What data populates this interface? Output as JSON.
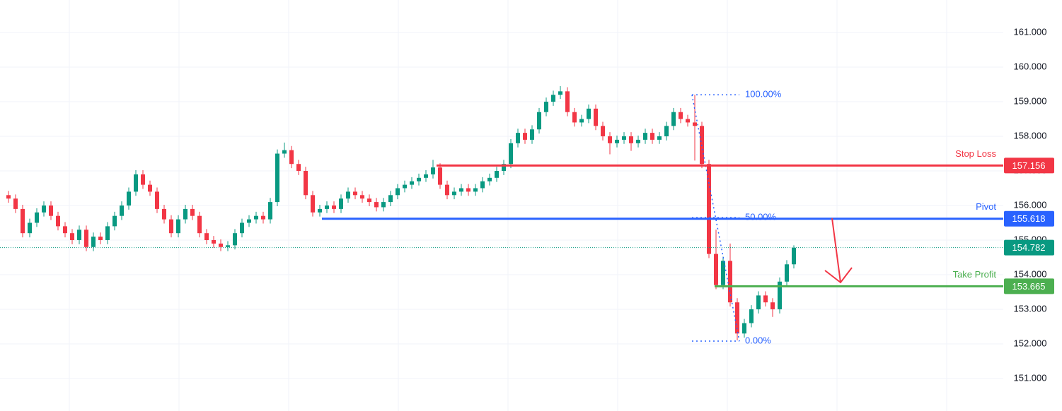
{
  "chart_data": {
    "type": "candlestick",
    "up_color": "#089981",
    "down_color": "#f23645",
    "ylim": [
      150.06,
      161.94
    ],
    "yticks": [
      {
        "value": 151,
        "label": "151.000"
      },
      {
        "value": 152,
        "label": "152.000"
      },
      {
        "value": 153,
        "label": "153.000"
      },
      {
        "value": 154,
        "label": "154.000"
      },
      {
        "value": 155,
        "label": "155.000"
      },
      {
        "value": 156,
        "label": "156.000"
      },
      {
        "value": 157,
        "label": "157.000"
      },
      {
        "value": 158,
        "label": "158.000"
      },
      {
        "value": 159,
        "label": "159.000"
      },
      {
        "value": 160,
        "label": "160.000"
      },
      {
        "value": 161,
        "label": "161.000"
      }
    ],
    "grid": true,
    "ohlc": [
      [
        156.3,
        156.42,
        156.08,
        156.2
      ],
      [
        156.2,
        156.32,
        155.78,
        155.9
      ],
      [
        155.9,
        156.02,
        155.08,
        155.2
      ],
      [
        155.2,
        155.62,
        155.08,
        155.5
      ],
      [
        155.5,
        155.92,
        155.38,
        155.8
      ],
      [
        155.8,
        156.12,
        155.68,
        156.0
      ],
      [
        156.0,
        156.12,
        155.58,
        155.7
      ],
      [
        155.7,
        155.82,
        155.28,
        155.4
      ],
      [
        155.4,
        155.52,
        155.08,
        155.2
      ],
      [
        155.2,
        155.32,
        154.88,
        155.0
      ],
      [
        155.0,
        155.42,
        154.88,
        155.3
      ],
      [
        155.3,
        155.42,
        154.68,
        154.8
      ],
      [
        154.8,
        155.22,
        154.68,
        155.1
      ],
      [
        155.1,
        155.22,
        154.88,
        155.0
      ],
      [
        155.0,
        155.52,
        154.88,
        155.4
      ],
      [
        155.4,
        155.82,
        155.28,
        155.7
      ],
      [
        155.7,
        156.12,
        155.58,
        156.0
      ],
      [
        156.0,
        156.52,
        155.88,
        156.4
      ],
      [
        156.4,
        157.02,
        156.28,
        156.9
      ],
      [
        156.9,
        157.02,
        156.48,
        156.6
      ],
      [
        156.6,
        156.72,
        156.28,
        156.4
      ],
      [
        156.4,
        156.52,
        155.78,
        155.9
      ],
      [
        155.9,
        156.02,
        155.48,
        155.6
      ],
      [
        155.6,
        155.72,
        155.08,
        155.2
      ],
      [
        155.2,
        155.72,
        155.08,
        155.6
      ],
      [
        155.6,
        156.02,
        155.48,
        155.9
      ],
      [
        155.9,
        156.02,
        155.58,
        155.7
      ],
      [
        155.7,
        155.82,
        155.08,
        155.2
      ],
      [
        155.2,
        155.32,
        154.88,
        155.0
      ],
      [
        155.0,
        155.12,
        154.78,
        154.9
      ],
      [
        154.9,
        155.02,
        154.68,
        154.8
      ],
      [
        154.8,
        154.97,
        154.68,
        154.85
      ],
      [
        154.85,
        155.32,
        154.73,
        155.2
      ],
      [
        155.2,
        155.62,
        155.08,
        155.5
      ],
      [
        155.5,
        155.72,
        155.38,
        155.6
      ],
      [
        155.6,
        155.82,
        155.48,
        155.7
      ],
      [
        155.7,
        155.82,
        155.48,
        155.6
      ],
      [
        155.6,
        156.22,
        155.48,
        156.1
      ],
      [
        156.1,
        157.62,
        155.98,
        157.5
      ],
      [
        157.5,
        157.82,
        157.38,
        157.6
      ],
      [
        157.6,
        157.72,
        157.08,
        157.2
      ],
      [
        157.2,
        157.32,
        156.88,
        157.0
      ],
      [
        157.0,
        157.12,
        156.18,
        156.3
      ],
      [
        156.3,
        156.42,
        155.68,
        155.8
      ],
      [
        155.8,
        156.02,
        155.68,
        155.9
      ],
      [
        155.9,
        156.12,
        155.78,
        156.0
      ],
      [
        156.0,
        156.12,
        155.78,
        155.9
      ],
      [
        155.9,
        156.32,
        155.78,
        156.2
      ],
      [
        156.2,
        156.52,
        156.08,
        156.4
      ],
      [
        156.4,
        156.52,
        156.18,
        156.3
      ],
      [
        156.3,
        156.42,
        156.08,
        156.2
      ],
      [
        156.2,
        156.32,
        155.98,
        156.1
      ],
      [
        156.1,
        156.22,
        155.83,
        155.95
      ],
      [
        155.95,
        156.22,
        155.83,
        156.1
      ],
      [
        156.1,
        156.42,
        155.98,
        156.3
      ],
      [
        156.3,
        156.62,
        156.18,
        156.5
      ],
      [
        156.5,
        156.72,
        156.38,
        156.6
      ],
      [
        156.6,
        156.82,
        156.48,
        156.7
      ],
      [
        156.7,
        156.92,
        156.58,
        156.8
      ],
      [
        156.8,
        157.02,
        156.68,
        156.9
      ],
      [
        156.9,
        157.32,
        156.78,
        157.1
      ],
      [
        157.1,
        157.22,
        156.48,
        156.6
      ],
      [
        156.6,
        156.72,
        156.18,
        156.3
      ],
      [
        156.3,
        156.52,
        156.18,
        156.4
      ],
      [
        156.4,
        156.62,
        156.28,
        156.5
      ],
      [
        156.5,
        156.62,
        156.28,
        156.4
      ],
      [
        156.4,
        156.62,
        156.28,
        156.5
      ],
      [
        156.5,
        156.82,
        156.38,
        156.7
      ],
      [
        156.7,
        156.92,
        156.58,
        156.8
      ],
      [
        156.8,
        157.12,
        156.68,
        157.0
      ],
      [
        157.0,
        157.32,
        156.88,
        157.2
      ],
      [
        157.2,
        157.92,
        157.08,
        157.8
      ],
      [
        157.8,
        158.22,
        157.68,
        158.1
      ],
      [
        158.1,
        158.22,
        157.78,
        157.9
      ],
      [
        157.9,
        158.32,
        157.78,
        158.2
      ],
      [
        158.2,
        158.82,
        158.08,
        158.7
      ],
      [
        158.7,
        159.12,
        158.58,
        159.0
      ],
      [
        159.0,
        159.32,
        158.88,
        159.2
      ],
      [
        159.2,
        159.45,
        159.08,
        159.3
      ],
      [
        159.3,
        159.42,
        158.58,
        158.7
      ],
      [
        158.7,
        158.82,
        158.28,
        158.4
      ],
      [
        158.4,
        158.62,
        158.28,
        158.5
      ],
      [
        158.5,
        158.92,
        158.38,
        158.8
      ],
      [
        158.8,
        158.92,
        158.18,
        158.3
      ],
      [
        158.3,
        158.42,
        157.88,
        158.0
      ],
      [
        158.0,
        158.12,
        157.48,
        157.8
      ],
      [
        157.8,
        158.02,
        157.68,
        157.9
      ],
      [
        157.9,
        158.12,
        157.78,
        158.0
      ],
      [
        158.0,
        158.12,
        157.58,
        157.8
      ],
      [
        157.8,
        158.02,
        157.68,
        157.9
      ],
      [
        157.9,
        158.22,
        157.78,
        158.1
      ],
      [
        158.1,
        158.22,
        157.78,
        157.9
      ],
      [
        157.9,
        158.12,
        157.78,
        158.0
      ],
      [
        158.0,
        158.42,
        157.88,
        158.3
      ],
      [
        158.3,
        158.82,
        158.18,
        158.7
      ],
      [
        158.7,
        158.82,
        158.38,
        158.5
      ],
      [
        158.5,
        158.62,
        158.28,
        158.4
      ],
      [
        158.4,
        159.2,
        157.3,
        158.3
      ],
      [
        158.3,
        158.42,
        157.08,
        157.2
      ],
      [
        157.2,
        157.32,
        154.48,
        154.6
      ],
      [
        154.6,
        155.3,
        153.58,
        153.7
      ],
      [
        153.7,
        154.52,
        153.58,
        154.4
      ],
      [
        154.4,
        154.9,
        153.08,
        153.2
      ],
      [
        153.2,
        153.32,
        152.1,
        152.3
      ],
      [
        152.3,
        152.72,
        152.18,
        152.6
      ],
      [
        152.6,
        153.12,
        152.48,
        153.0
      ],
      [
        153.0,
        153.52,
        152.88,
        153.4
      ],
      [
        153.4,
        153.52,
        153.08,
        153.2
      ],
      [
        153.2,
        153.32,
        152.78,
        153.0
      ],
      [
        153.0,
        153.92,
        152.88,
        153.8
      ],
      [
        153.8,
        154.42,
        153.68,
        154.3
      ],
      [
        154.3,
        154.85,
        154.18,
        154.78
      ]
    ],
    "levels": [
      {
        "name": "Stop Loss",
        "value": 157.156,
        "label": "157.156",
        "color": "#f23645"
      },
      {
        "name": "Pivot",
        "value": 155.618,
        "label": "155.618",
        "color": "#2962ff"
      },
      {
        "name": "Take Profit",
        "value": 153.665,
        "label": "153.665",
        "color": "#4caf50"
      }
    ],
    "last_price": {
      "value": 154.782,
      "label": "154.782",
      "color": "#089981"
    },
    "fib": {
      "color": "#2962ff",
      "levels": [
        {
          "price": 159.2,
          "label": "100.00%"
        },
        {
          "price": 155.65,
          "label": "50.00%"
        },
        {
          "price": 152.08,
          "label": "0.00%"
        }
      ]
    }
  }
}
